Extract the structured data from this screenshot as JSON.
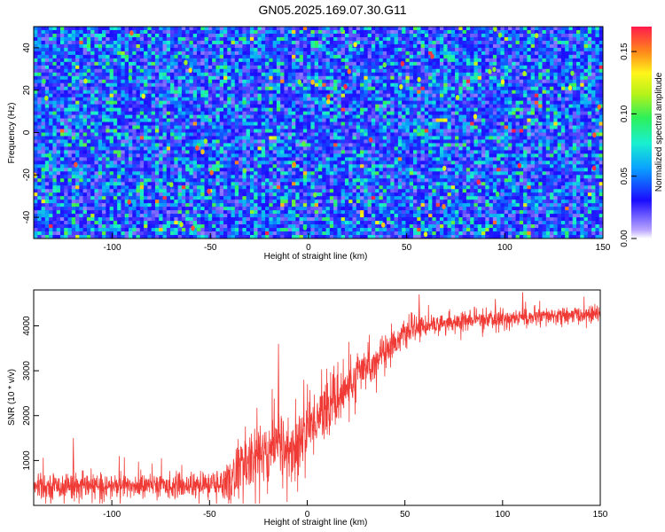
{
  "title": "GN05.2025.169.07.30.G11",
  "chart_data": [
    {
      "type": "heatmap",
      "xlabel": "Height of straight line (km)",
      "ylabel": "Frequency (Hz)",
      "xlim": [
        -140,
        150
      ],
      "ylim": [
        -50,
        50
      ],
      "xticks": [
        "-100",
        "-50",
        "0",
        "50",
        "100",
        "150"
      ],
      "yticks": [
        "-40",
        "-20",
        "0",
        "20",
        "40"
      ],
      "colorbar": {
        "label": "Normalized spectral amplitude",
        "range": [
          0,
          0.17
        ],
        "ticks": [
          "0.00",
          "0.05",
          "0.10",
          "0.15"
        ]
      },
      "description_values": {
        "background_level": 0.02,
        "typical_peak_level": 0.07,
        "max_level": 0.17
      }
    },
    {
      "type": "line",
      "xlabel": "Height of straight line (km)",
      "ylabel": "SNR (10 * v/v)",
      "xlim": [
        -140,
        150
      ],
      "ylim": [
        0,
        4800
      ],
      "xticks": [
        "-100",
        "-50",
        "0",
        "50",
        "100",
        "150"
      ],
      "yticks": [
        "1000",
        "2000",
        "3000",
        "4000"
      ],
      "grid": false,
      "series": [
        {
          "color": "#f03a35",
          "x": [
            -140,
            -130,
            -120,
            -110,
            -100,
            -90,
            -80,
            -70,
            -60,
            -50,
            -45,
            -40,
            -35,
            -30,
            -25,
            -20,
            -15,
            -10,
            -5,
            0,
            5,
            10,
            15,
            20,
            25,
            30,
            35,
            40,
            45,
            50,
            55,
            60,
            70,
            80,
            90,
            100,
            110,
            120,
            130,
            140,
            150
          ],
          "y": [
            420,
            430,
            440,
            420,
            430,
            430,
            440,
            440,
            450,
            460,
            480,
            560,
            800,
            950,
            1100,
            1250,
            1400,
            1200,
            1350,
            1700,
            1950,
            2150,
            2350,
            2600,
            2850,
            3050,
            3250,
            3450,
            3650,
            3820,
            3940,
            4000,
            4050,
            4100,
            4130,
            4150,
            4180,
            4200,
            4220,
            4240,
            4260
          ],
          "noise_amplitude": [
            250,
            250,
            260,
            250,
            250,
            240,
            250,
            250,
            250,
            260,
            280,
            450,
            600,
            650,
            700,
            750,
            800,
            650,
            650,
            650,
            600,
            600,
            550,
            550,
            500,
            450,
            400,
            350,
            300,
            250,
            220,
            220,
            200,
            200,
            200,
            200,
            180,
            180,
            170,
            170,
            170
          ],
          "spikes": [
            {
              "x": -15,
              "y": 3600
            },
            {
              "x": -120,
              "y": 1500
            },
            {
              "x": 57,
              "y": 4700
            },
            {
              "x": 110,
              "y": 4750
            },
            {
              "x": 96,
              "y": 4600
            }
          ]
        }
      ]
    }
  ]
}
